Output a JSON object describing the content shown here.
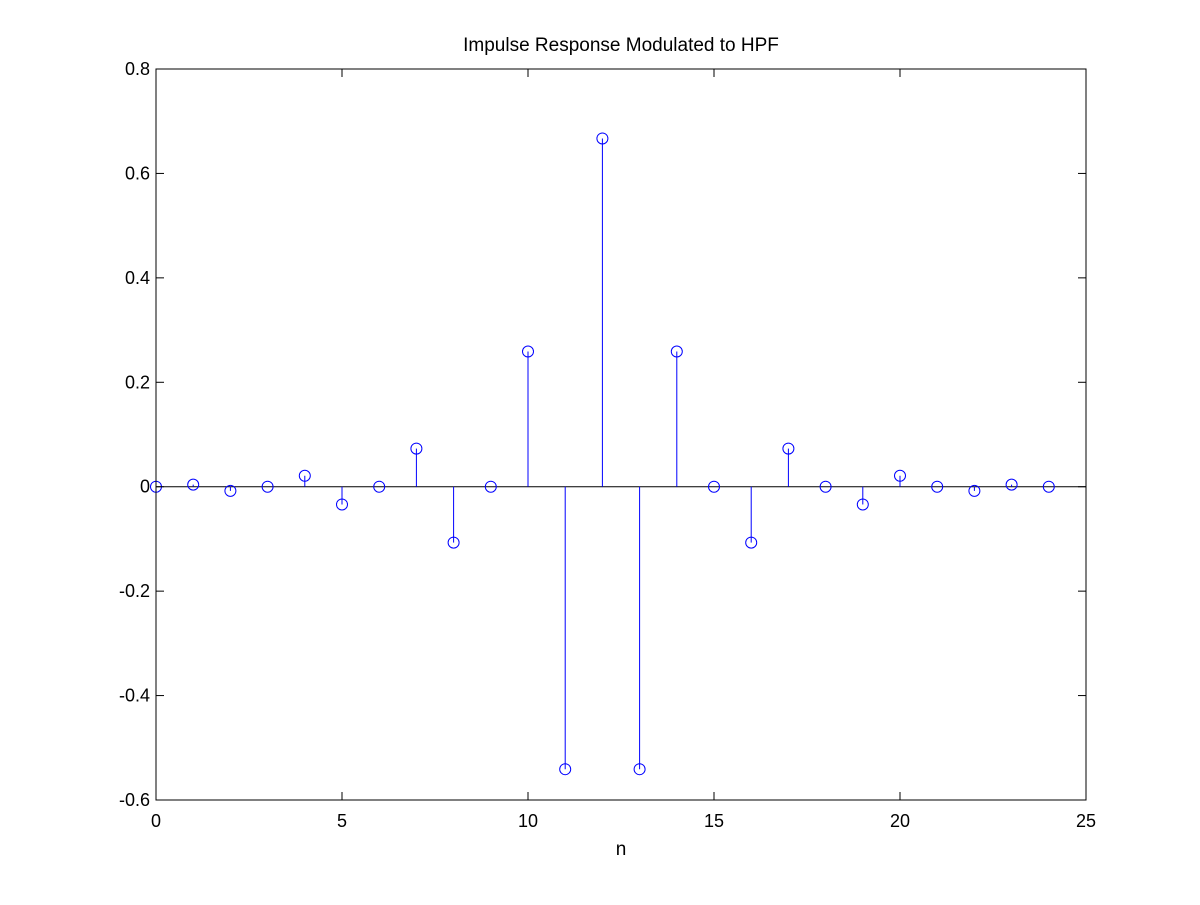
{
  "chart_data": {
    "type": "stem",
    "title": "Impulse Response Modulated to HPF",
    "xlabel": "n",
    "ylabel": "",
    "xlim": [
      0,
      25
    ],
    "ylim": [
      -0.6,
      0.8
    ],
    "xticks": [
      "0",
      "5",
      "10",
      "15",
      "20",
      "25"
    ],
    "yticks": [
      "-0.6",
      "-0.4",
      "-0.2",
      "0",
      "0.2",
      "0.4",
      "0.6",
      "0.8"
    ],
    "xtick_values": [
      0,
      5,
      10,
      15,
      20,
      25
    ],
    "ytick_values": [
      -0.6,
      -0.4,
      -0.2,
      0,
      0.2,
      0.4,
      0.6,
      0.8
    ],
    "grid": false,
    "series": [
      {
        "color": "#0000ff",
        "marker": "circle",
        "x": [
          0,
          1,
          2,
          3,
          4,
          5,
          6,
          7,
          8,
          9,
          10,
          11,
          12,
          13,
          14,
          15,
          16,
          17,
          18,
          19,
          20,
          21,
          22,
          23,
          24
        ],
        "y": [
          0,
          0.004,
          -0.008,
          0,
          0.021,
          -0.034,
          0,
          0.073,
          -0.107,
          0,
          0.259,
          -0.541,
          0.667,
          -0.541,
          0.259,
          0,
          -0.107,
          0.073,
          0,
          -0.034,
          0.021,
          0,
          -0.008,
          0.004,
          0
        ]
      }
    ]
  }
}
